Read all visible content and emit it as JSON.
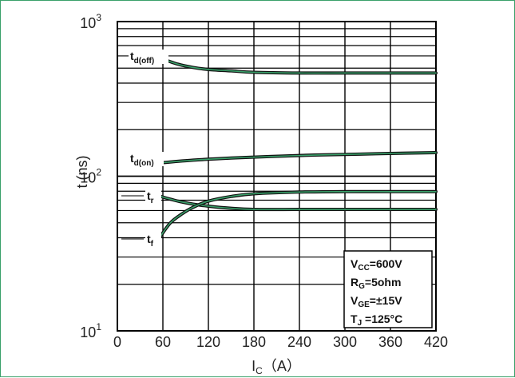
{
  "chart_data": {
    "type": "line",
    "xlabel": {
      "main": "I",
      "sub": "C",
      "tail": "（A）"
    },
    "ylabel": "t (ns)",
    "xlim": [
      0,
      420
    ],
    "ylim": [
      10,
      1000
    ],
    "yscale": "log",
    "x_ticks": [
      "0",
      "60",
      "120",
      "180",
      "240",
      "300",
      "360",
      "420"
    ],
    "y_ticks": [
      {
        "base": "10",
        "exp": "1",
        "value": 10
      },
      {
        "base": "10",
        "exp": "2",
        "value": 100
      },
      {
        "base": "10",
        "exp": "3",
        "value": 1000
      }
    ],
    "grid": true,
    "series": [
      {
        "name": "td(off)",
        "label_main": "t",
        "label_sub": "d(off)",
        "x": [
          57,
          80,
          100,
          120,
          150,
          180,
          240,
          300,
          360,
          420
        ],
        "y": [
          580,
          530,
          505,
          490,
          480,
          470,
          465,
          465,
          465,
          465
        ]
      },
      {
        "name": "td(on)",
        "label_main": "t",
        "label_sub": "d(on)",
        "x": [
          57,
          100,
          150,
          200,
          260,
          320,
          380,
          420
        ],
        "y": [
          122,
          127,
          131,
          134,
          137,
          139,
          141,
          142
        ]
      },
      {
        "name": "tr",
        "label_main": "t",
        "label_sub": "r",
        "x": [
          57,
          80,
          100,
          120,
          150,
          180,
          240,
          300,
          360,
          420
        ],
        "y": [
          74,
          69,
          66,
          64,
          62,
          61,
          61,
          61,
          61,
          61
        ]
      },
      {
        "name": "tf",
        "label_main": "t",
        "label_sub": "f",
        "x": [
          57,
          70,
          85,
          100,
          120,
          150,
          180,
          240,
          300,
          360,
          420
        ],
        "y": [
          41,
          50,
          57,
          63,
          69,
          74,
          77,
          79,
          79.5,
          79.5,
          79.5
        ]
      }
    ],
    "conditions": [
      {
        "main": "V",
        "sub": "CC",
        "value": "=600V"
      },
      {
        "main": "R",
        "sub": "G",
        "value": "=5ohm"
      },
      {
        "main": "V",
        "sub": "GE",
        "value": "=±15V"
      },
      {
        "main": "T",
        "sub": "J",
        "value": " =125°C"
      }
    ],
    "colors": {
      "curve_outer": "#111111",
      "curve_inner": "#3aa06a",
      "frame": "#3aa06a",
      "grid": "#000000"
    }
  }
}
